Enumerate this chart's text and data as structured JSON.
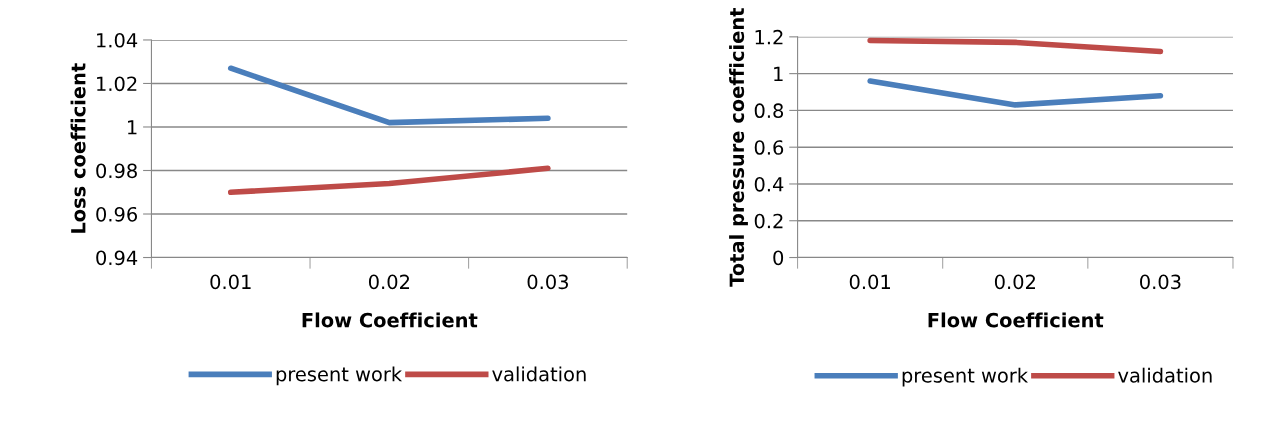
{
  "chart_data": [
    {
      "type": "line",
      "xlabel": "Flow Coefficient",
      "ylabel": "Loss coefficient",
      "categories": [
        "0.01",
        "0.02",
        "0.03"
      ],
      "series": [
        {
          "name": "present work",
          "color": "#4a7ebb",
          "values": [
            1.027,
            1.002,
            1.004
          ]
        },
        {
          "name": "validation",
          "color": "#be4b48",
          "values": [
            0.97,
            0.974,
            0.981
          ]
        }
      ],
      "ylim": [
        0.94,
        1.04
      ],
      "yticks": [
        {
          "value": 0.94,
          "label": "0.94"
        },
        {
          "value": 0.96,
          "label": "0.96"
        },
        {
          "value": 0.98,
          "label": "0.98"
        },
        1,
        {
          "value": 1.02,
          "label": "1.02"
        },
        {
          "value": 1.04,
          "label": "1.04"
        }
      ],
      "grid": "y",
      "legend": "bottom",
      "marker": "none",
      "line_style": "solid"
    },
    {
      "type": "line",
      "xlabel": "Flow Coefficient",
      "ylabel": "Total pressure coefficient",
      "categories": [
        "0.01",
        "0.02",
        "0.03"
      ],
      "series": [
        {
          "name": "present work",
          "color": "#4a7ebb",
          "values": [
            0.96,
            0.83,
            0.88
          ]
        },
        {
          "name": "validation",
          "color": "#be4b48",
          "values": [
            1.18,
            1.17,
            1.12
          ]
        }
      ],
      "ylim": [
        0,
        1.2
      ],
      "yticks": [
        0,
        0.2,
        0.4,
        0.6,
        0.8,
        1,
        1.2
      ],
      "grid": "y",
      "legend": "bottom",
      "marker": "none",
      "line_style": "solid"
    }
  ]
}
